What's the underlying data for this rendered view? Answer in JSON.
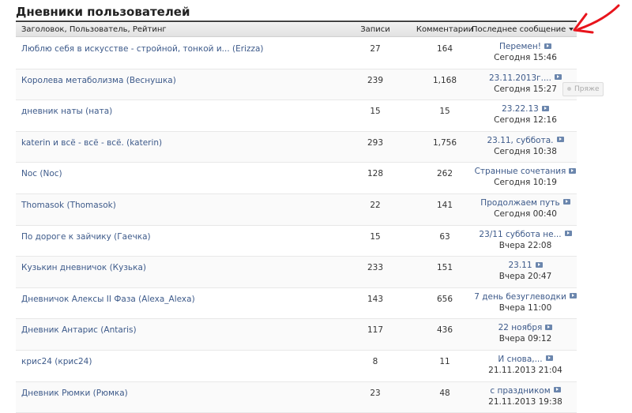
{
  "page_title": "Дневники пользователей",
  "columns": {
    "title": "Заголовок, Пользователь, Рейтинг",
    "posts": "Записи",
    "comments": "Комментарии",
    "last": "Последнее сообщение"
  },
  "rows": [
    {
      "title": "Люблю себя в искусстве - стройной, тонкой и... (Erizza)",
      "posts": "27",
      "comments": "164",
      "last": "Перемен!",
      "time": "Сегодня  15:46"
    },
    {
      "title": "Королева метаболизма (Веснушка)",
      "posts": "239",
      "comments": "1,168",
      "last": "23.11.2013г....",
      "time": "Сегодня  15:27"
    },
    {
      "title": "дневник наты (ната)",
      "posts": "15",
      "comments": "15",
      "last": "23.22.13",
      "time": "Сегодня  12:16"
    },
    {
      "title": "katerin и всё - всё - всё. (katerin)",
      "posts": "293",
      "comments": "1,756",
      "last": "23.11, суббота.",
      "time": "Сегодня  10:38"
    },
    {
      "title": "Noc (Noc)",
      "posts": "128",
      "comments": "262",
      "last": "Странные сочетания",
      "time": "Сегодня  10:19"
    },
    {
      "title": "Thomasok (Thomasok)",
      "posts": "22",
      "comments": "141",
      "last": "Продолжаем путь",
      "time": "Сегодня  00:40"
    },
    {
      "title": "По дороге к зайчику (Гаечка)",
      "posts": "15",
      "comments": "63",
      "last": "23/11 суббота не...",
      "time": "Вчера  22:08"
    },
    {
      "title": "Кузькин дневничок (Кузька)",
      "posts": "233",
      "comments": "151",
      "last": "23.11",
      "time": "Вчера  20:47"
    },
    {
      "title": "Дневничок Алексы II Фаза (Alexa_Alexa)",
      "posts": "143",
      "comments": "656",
      "last": "7 день безуглеводки",
      "time": "Вчера  11:00"
    },
    {
      "title": "Дневник Антарис (Antaris)",
      "posts": "117",
      "comments": "436",
      "last": "22 ноября",
      "time": "Вчера  09:12"
    },
    {
      "title": "крис24 (крис24)",
      "posts": "8",
      "comments": "11",
      "last": "И снова,...",
      "time": "21.11.2013  21:04"
    },
    {
      "title": "Дневник Рюмки (Рюмка)",
      "posts": "23",
      "comments": "48",
      "last": "с праздником",
      "time": "21.11.2013  19:38"
    }
  ],
  "tooltip": {
    "text": "Пряже"
  },
  "icons": {
    "sort": "sort-down-icon",
    "go": "go-to-post-icon"
  },
  "annotation_color": "#e8141c"
}
